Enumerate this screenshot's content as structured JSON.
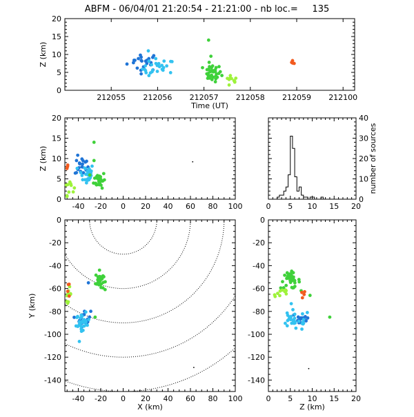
{
  "title": "ABFM - 06/04/01 21:20:54 - 21:21:00 - nb loc.=     135",
  "colors": {
    "darkblue": "#1f74d6",
    "lightblue": "#33c2f0",
    "green": "#3fd13a",
    "lightgreen": "#9ef23b",
    "orange": "#f25a1e",
    "black": "#000000"
  },
  "chart_data": [
    {
      "id": "time_height",
      "type": "scatter",
      "xlabel": "Time (UT)",
      "ylabel": "Z (km)",
      "xlim": [
        212054.5,
        212100
      ],
      "ylim": [
        0,
        20
      ],
      "xticks": [
        212055,
        212056,
        212057,
        212058,
        212059,
        212100
      ],
      "xtick_labels": [
        "212055",
        "212056",
        "212057",
        "212058",
        "212059",
        "212100"
      ],
      "yticks": [
        0,
        5,
        10,
        15,
        20
      ],
      "xtick_pos": [
        0.2,
        0.4,
        0.6,
        0.8,
        1.0,
        1.2
      ],
      "clusters": [
        {
          "color": "darkblue",
          "cx": 0.34,
          "sx": 0.035,
          "cy": 8.0,
          "sy": 1.3,
          "n": 22
        },
        {
          "color": "lightblue",
          "cx": 0.405,
          "sx": 0.035,
          "cy": 6.0,
          "sy": 1.4,
          "n": 26
        },
        {
          "color": "green",
          "cx": 0.635,
          "sx": 0.02,
          "cy": 4.8,
          "sy": 1.2,
          "n": 35
        },
        {
          "color": "lightgreen",
          "cx": 0.715,
          "sx": 0.015,
          "cy": 2.6,
          "sy": 0.9,
          "n": 10
        },
        {
          "color": "orange",
          "cx": 0.985,
          "sx": 0.004,
          "cy": 7.7,
          "sy": 0.3,
          "n": 4
        }
      ],
      "extra_points": [
        {
          "color": "green",
          "x": 0.62,
          "y": 14.0
        },
        {
          "color": "green",
          "x": 0.63,
          "y": 9.5
        },
        {
          "color": "lightblue",
          "x": 0.36,
          "y": 11.0
        }
      ]
    },
    {
      "id": "xz",
      "type": "scatter",
      "xlabel": "",
      "ylabel": "Z (km)",
      "xlim": [
        -52,
        100
      ],
      "ylim": [
        0,
        20
      ],
      "xticks": [
        -40,
        -20,
        0,
        20,
        40,
        60,
        80,
        100
      ],
      "yticks": [
        0,
        5,
        10,
        15,
        20
      ],
      "clusters": [
        {
          "color": "darkblue",
          "cx": -37,
          "sx": 3,
          "cy": 8.2,
          "sy": 1.2,
          "n": 20
        },
        {
          "color": "lightblue",
          "cx": -33,
          "sx": 3.5,
          "cy": 6.2,
          "sy": 1.3,
          "n": 30
        },
        {
          "color": "green",
          "cx": -21,
          "sx": 2.5,
          "cy": 4.8,
          "sy": 1.0,
          "n": 35
        },
        {
          "color": "lightgreen",
          "cx": -48,
          "sx": 2,
          "cy": 3.2,
          "sy": 1.1,
          "n": 10
        },
        {
          "color": "orange",
          "cx": -50,
          "sx": 0.7,
          "cy": 7.7,
          "sy": 0.3,
          "n": 4
        }
      ],
      "extra_points": [
        {
          "color": "green",
          "x": -26,
          "y": 14.0
        },
        {
          "color": "green",
          "x": -26,
          "y": 9.5
        },
        {
          "color": "black",
          "x": 62,
          "y": 9.2
        }
      ]
    },
    {
      "id": "histogram",
      "type": "histogram",
      "xlabel": "",
      "ylabel": "number of sources",
      "xlim": [
        0,
        20
      ],
      "ylim": [
        0,
        40
      ],
      "xticks": [
        0,
        5,
        10,
        15,
        20
      ],
      "yticks": [
        0,
        10,
        20,
        30,
        40
      ],
      "bin_width": 0.5,
      "bin_start": 2.0,
      "counts": [
        1,
        2,
        2,
        4,
        6,
        12,
        31,
        25,
        11,
        4,
        6,
        2,
        1,
        1,
        0,
        1,
        1,
        0,
        0,
        0,
        1,
        0
      ]
    },
    {
      "id": "xy",
      "type": "scatter",
      "xlabel": "X (km)",
      "ylabel": "Y (km)",
      "xlim": [
        -52,
        100
      ],
      "ylim": [
        -150,
        0
      ],
      "xticks": [
        -40,
        -20,
        0,
        20,
        40,
        60,
        80,
        100
      ],
      "yticks": [
        -140,
        -120,
        -100,
        -80,
        -60,
        -40,
        -20,
        0
      ],
      "range_rings_km": [
        30,
        60,
        90,
        120,
        150
      ],
      "ring_center": [
        0,
        0
      ],
      "clusters": [
        {
          "color": "green",
          "cx": -21,
          "sx": 1.8,
          "cy": -53,
          "sy": 4.0,
          "n": 35
        },
        {
          "color": "darkblue",
          "cx": -35,
          "sx": 3.0,
          "cy": -86,
          "sy": 3.5,
          "n": 20
        },
        {
          "color": "lightblue",
          "cx": -36,
          "sx": 3.0,
          "cy": -91,
          "sy": 4.5,
          "n": 30
        },
        {
          "color": "lightgreen",
          "cx": -49,
          "sx": 1.3,
          "cy": -65,
          "sy": 3.0,
          "n": 10
        },
        {
          "color": "orange",
          "cx": -48,
          "sx": 1.0,
          "cy": -62,
          "sy": 4.0,
          "n": 4
        }
      ],
      "extra_points": [
        {
          "color": "green",
          "x": -25,
          "y": -85
        },
        {
          "color": "darkblue",
          "x": -31,
          "y": -55
        },
        {
          "color": "black",
          "x": 63,
          "y": -129
        }
      ]
    },
    {
      "id": "zy",
      "type": "scatter",
      "xlabel": "Z (km)",
      "ylabel": "",
      "xlim": [
        0,
        20
      ],
      "ylim": [
        -150,
        0
      ],
      "xticks": [
        0,
        5,
        10,
        15,
        20
      ],
      "yticks": [
        -140,
        -120,
        -100,
        -80,
        -60,
        -40,
        -20,
        0
      ],
      "clusters": [
        {
          "color": "green",
          "cx": 5.0,
          "sx": 1.1,
          "cy": -53,
          "sy": 3.5,
          "n": 35
        },
        {
          "color": "lightgreen",
          "cx": 3.0,
          "sx": 1.0,
          "cy": -64,
          "sy": 2.5,
          "n": 10
        },
        {
          "color": "darkblue",
          "cx": 7.5,
          "sx": 1.2,
          "cy": -86,
          "sy": 3.5,
          "n": 20
        },
        {
          "color": "lightblue",
          "cx": 6.0,
          "sx": 1.8,
          "cy": -88,
          "sy": 4.5,
          "n": 30
        },
        {
          "color": "orange",
          "cx": 7.8,
          "sx": 0.4,
          "cy": -66,
          "sy": 2.5,
          "n": 4
        }
      ],
      "extra_points": [
        {
          "color": "green",
          "x": 14,
          "y": -85
        },
        {
          "color": "green",
          "x": 9.5,
          "y": -66
        },
        {
          "color": "black",
          "x": 9.2,
          "y": -130
        }
      ]
    }
  ]
}
